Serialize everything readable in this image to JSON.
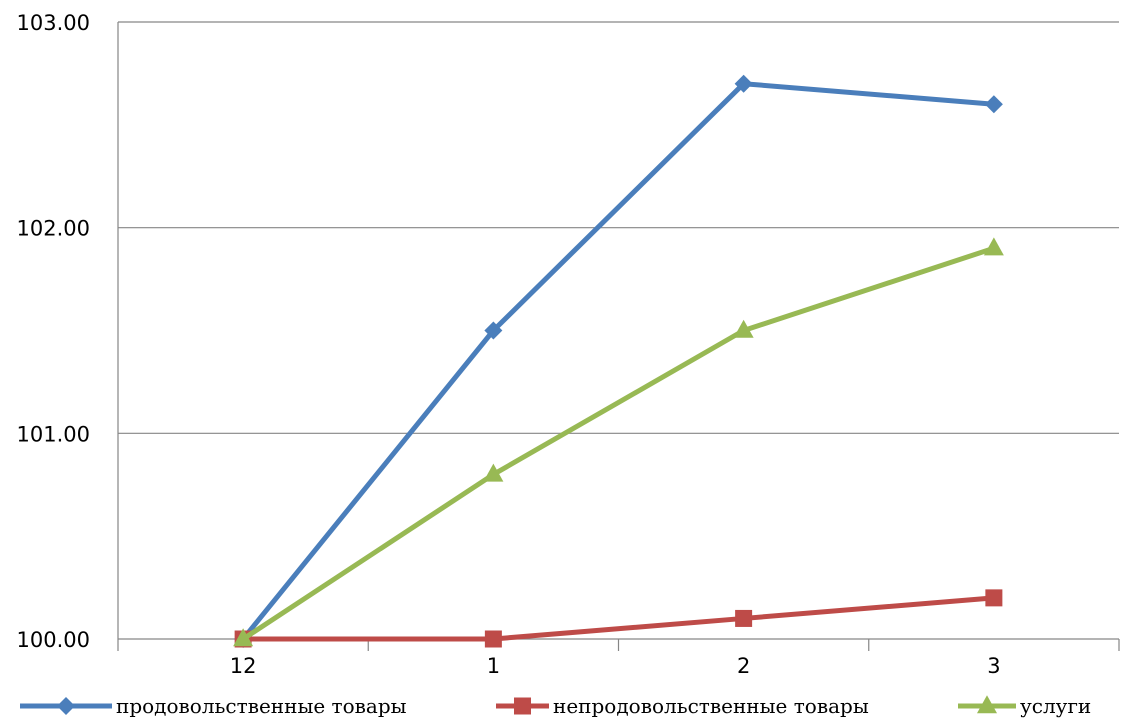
{
  "chart_data": {
    "type": "line",
    "title": "",
    "xlabel": "",
    "ylabel": "",
    "categories": [
      "12",
      "1",
      "2",
      "3"
    ],
    "ylim": [
      100,
      103
    ],
    "y_ticks": [
      "100.00",
      "101.00",
      "102.00",
      "103.00"
    ],
    "grid": "horizontal",
    "legend_position": "bottom",
    "series": [
      {
        "name": "продовольственные товары",
        "values": [
          100.0,
          101.5,
          102.7,
          102.6
        ],
        "color": "#4a7ebb",
        "marker": "diamond"
      },
      {
        "name": "непродовольственные товары",
        "values": [
          100.0,
          100.0,
          100.1,
          100.2
        ],
        "color": "#be4b48",
        "marker": "square"
      },
      {
        "name": "услуги",
        "values": [
          100.0,
          100.8,
          101.5,
          101.9
        ],
        "color": "#98b954",
        "marker": "triangle"
      }
    ]
  }
}
